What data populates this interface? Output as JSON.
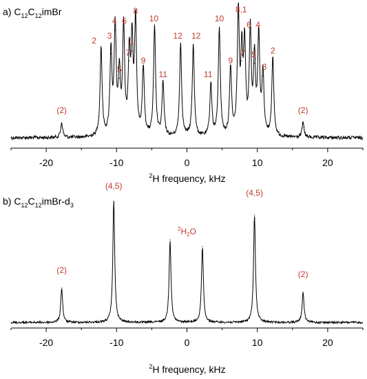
{
  "chart_data": [
    {
      "type": "line",
      "panel_label": "a)",
      "title_parts": [
        "C",
        "12",
        "C",
        "12",
        "imBr"
      ],
      "xlabel_parts": [
        "2",
        "H frequency, kHz"
      ],
      "xlim": [
        -25,
        25
      ],
      "xticks": [
        -20,
        -10,
        0,
        10,
        20
      ],
      "tick_labels": [
        "-20",
        "-10",
        "0",
        "10",
        "20"
      ],
      "grid": false,
      "series": [
        {
          "x": [
            -17.8,
            -12.2,
            -10.8,
            -10.2,
            -9.6,
            -9.0,
            -8.2,
            -7.8,
            -7.3,
            -6.2,
            -4.6,
            -3.4,
            -0.9,
            0.9,
            3.4,
            4.6,
            6.2,
            7.3,
            7.8,
            8.2,
            9.0,
            9.6,
            10.2,
            10.8,
            12.2,
            16.5
          ],
          "y": [
            0.12,
            0.72,
            0.68,
            0.87,
            0.48,
            0.87,
            0.62,
            0.7,
            0.93,
            0.55,
            0.88,
            0.43,
            0.75,
            0.75,
            0.43,
            0.88,
            0.55,
            0.98,
            0.62,
            0.7,
            0.84,
            0.6,
            0.8,
            0.5,
            0.63,
            0.12
          ]
        }
      ],
      "annotations": [
        {
          "text": "(2)",
          "x": -17.8,
          "y": 0.2
        },
        {
          "text": "2",
          "x": -13.2,
          "y": 0.76
        },
        {
          "text": "3",
          "x": -11.0,
          "y": 0.8
        },
        {
          "text": "4",
          "x": -10.3,
          "y": 0.92
        },
        {
          "text": "5",
          "x": -9.6,
          "y": 0.53
        },
        {
          "text": "6",
          "x": -8.9,
          "y": 0.92
        },
        {
          "text": "7",
          "x": -8.4,
          "y": 0.66
        },
        {
          "text": "1",
          "x": -7.9,
          "y": 0.75
        },
        {
          "text": "8",
          "x": -7.3,
          "y": 1.0
        },
        {
          "text": "9",
          "x": -6.2,
          "y": 0.6
        },
        {
          "text": "10",
          "x": -4.7,
          "y": 0.94
        },
        {
          "text": "11",
          "x": -3.4,
          "y": 0.49
        },
        {
          "text": "12",
          "x": -1.3,
          "y": 0.8
        },
        {
          "text": "12",
          "x": 1.3,
          "y": 0.8
        },
        {
          "text": "11",
          "x": 3.0,
          "y": 0.49
        },
        {
          "text": "10",
          "x": 4.6,
          "y": 0.94
        },
        {
          "text": "9",
          "x": 6.2,
          "y": 0.6
        },
        {
          "text": "8,1",
          "x": 7.7,
          "y": 1.01
        },
        {
          "text": "7",
          "x": 7.9,
          "y": 0.66
        },
        {
          "text": "6",
          "x": 8.8,
          "y": 0.89
        },
        {
          "text": "5",
          "x": 9.5,
          "y": 0.65
        },
        {
          "text": "4",
          "x": 10.1,
          "y": 0.89
        },
        {
          "text": "3",
          "x": 11.0,
          "y": 0.55
        },
        {
          "text": "2",
          "x": 12.2,
          "y": 0.68
        },
        {
          "text": "(2)",
          "x": 16.5,
          "y": 0.2
        }
      ]
    },
    {
      "type": "line",
      "panel_label": "b)",
      "title_parts": [
        "C",
        "12",
        "C",
        "12",
        "imBr-d",
        "3"
      ],
      "xlabel_parts": [
        "2",
        "H frequency, kHz"
      ],
      "xlim": [
        -25,
        25
      ],
      "xticks": [
        -20,
        -10,
        0,
        10,
        20
      ],
      "tick_labels": [
        "-20",
        "-10",
        "0",
        "10",
        "20"
      ],
      "grid": false,
      "series": [
        {
          "x": [
            -17.8,
            -10.4,
            -2.4,
            2.2,
            9.6,
            16.5
          ],
          "y": [
            0.25,
            0.88,
            0.6,
            0.55,
            0.78,
            0.22
          ]
        }
      ],
      "annotations": [
        {
          "text": "(2)",
          "x": -17.8,
          "y": 0.36
        },
        {
          "text": "(4,5)",
          "x": -10.4,
          "y": 0.97
        },
        {
          "text_parts": [
            "2",
            "H",
            "2",
            "O"
          ],
          "x": 0.0,
          "y": 0.64
        },
        {
          "text": "(4,5)",
          "x": 9.6,
          "y": 0.92
        },
        {
          "text": "(2)",
          "x": 16.5,
          "y": 0.33
        }
      ]
    }
  ]
}
